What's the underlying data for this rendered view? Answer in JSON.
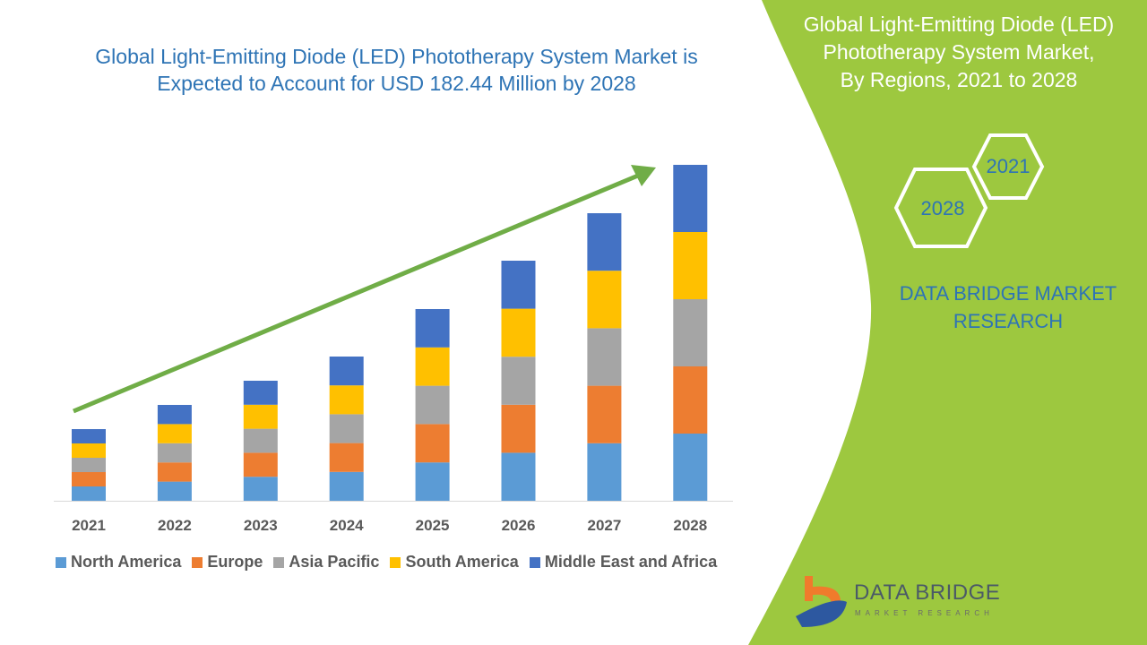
{
  "header": {
    "title_line1": "Global Light-Emitting Diode (LED) Phototherapy System Market is",
    "title_line2": "Expected to Account for USD 182.44 Million by 2028"
  },
  "side_panel": {
    "title_line1": "Global Light-Emitting Diode (LED)",
    "title_line2": "Phototherapy System Market,",
    "title_line3": "By Regions, 2021 to 2028",
    "hex_1": "2021",
    "hex_2": "2028",
    "brand_line1": "DATA BRIDGE MARKET",
    "brand_line2": "RESEARCH",
    "logo_text": "DATA BRIDGE",
    "logo_sub": "MARKET RESEARCH"
  },
  "colors": {
    "panel_green": "#9dc83f",
    "title_blue": "#2e74b5",
    "trend_arrow": "#70ad47"
  },
  "chart_data": {
    "type": "bar",
    "stacked": true,
    "categories": [
      "2021",
      "2022",
      "2023",
      "2024",
      "2025",
      "2026",
      "2027",
      "2028"
    ],
    "y_axis_shown": false,
    "grid": false,
    "legend_position": "bottom",
    "series": [
      {
        "name": "North America",
        "color": "#5b9bd5",
        "values": [
          16,
          21.4,
          26.8,
          32.2,
          42.8,
          53.6,
          64.2,
          75
        ]
      },
      {
        "name": "Europe",
        "color": "#ed7d31",
        "values": [
          16,
          21.4,
          26.8,
          32.2,
          42.8,
          53.6,
          64.2,
          75
        ]
      },
      {
        "name": "Asia Pacific",
        "color": "#a5a5a5",
        "values": [
          16,
          21.4,
          26.8,
          32.2,
          42.8,
          53.6,
          64.2,
          75
        ]
      },
      {
        "name": "South America",
        "color": "#ffc000",
        "values": [
          16,
          21.4,
          26.8,
          32.2,
          42.8,
          53.6,
          64.2,
          75
        ]
      },
      {
        "name": "Middle East and Africa",
        "color": "#4472c4",
        "values": [
          16,
          21.4,
          26.8,
          32.2,
          42.8,
          53.6,
          64.2,
          75
        ]
      }
    ],
    "annotation": "upward trend arrow"
  }
}
